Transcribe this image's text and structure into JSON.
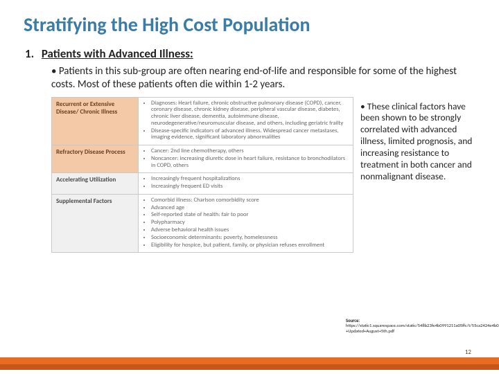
{
  "colors": {
    "title": "#3a7ca8",
    "footer_top": "#e86c1f",
    "footer_bottom": "#c4571a",
    "table_border": "#c9c9c9",
    "row_head_bg": "#f0f0f0",
    "row_head_hl_bg": "#f4c9a8",
    "text_gray": "#666666"
  },
  "title": "Stratifying the High Cost Population",
  "item_number": "1.",
  "item_heading": "Patients with Advanced Illness:",
  "subpoint": "Patients in this sub-group are often nearing end-of-life and responsible for some of the highest costs. Most of these patients often die within 1-2 years.",
  "side_bullet": "These clinical factors have been shown to be strongly correlated with advanced illness, limited prognosis, and increasing resistance to treatment in both cancer and nonmalignant disease.",
  "table": {
    "rows": [
      {
        "head": "Recurrent or Extensive Disease/\nChronic Illness",
        "highlight": true,
        "items": [
          "Diagnoses: Heart failure, chronic obstructive pulmonary disease (COPD), cancer, coronary disease, chronic kidney disease, peripheral vascular disease, diabetes, chronic liver disease, dementia, autoimmune disease, neurodegenerative/neuromuscular disease, and others, including geriatric frailty",
          "Disease-specific indicators of advanced illness. Widespread cancer metastases, imaging evidence, significant laboratory abnormalities"
        ]
      },
      {
        "head": "Refractory Disease Process",
        "highlight": true,
        "items": [
          "Cancer: 2nd line chemotherapy, others",
          "Noncancer: increasing diuretic dose in heart failure, resistance to bronchodilators in COPD, others"
        ]
      },
      {
        "head": "Accelerating Utilization",
        "highlight": false,
        "items": [
          "Increasingly frequent hospitalizations",
          "Increasingly frequent ED visits"
        ]
      },
      {
        "head": "Supplemental Factors",
        "highlight": false,
        "items": [
          "Comorbid illness: Charlson comorbidity score",
          "Advanced age",
          "Self-reported state of health: fair to poor",
          "Polypharmacy",
          "Adverse behavioral health issues",
          "Socioeconomic determinants: poverty, homelessness",
          "Eligibility for hospice, but patient, family, or physician refuses enrollment"
        ]
      }
    ]
  },
  "source_label": "Source:",
  "source_text": "https://static1.squarespace.com/static/548b23fe4b0991211a05ffc/t/55ca2424e4b0d19df157ebfd/1439313183511/Proactively+Identifying+the+High+Cost+Population+White+Paper+-+Updated+August+5th.pdf",
  "page_number": "12"
}
